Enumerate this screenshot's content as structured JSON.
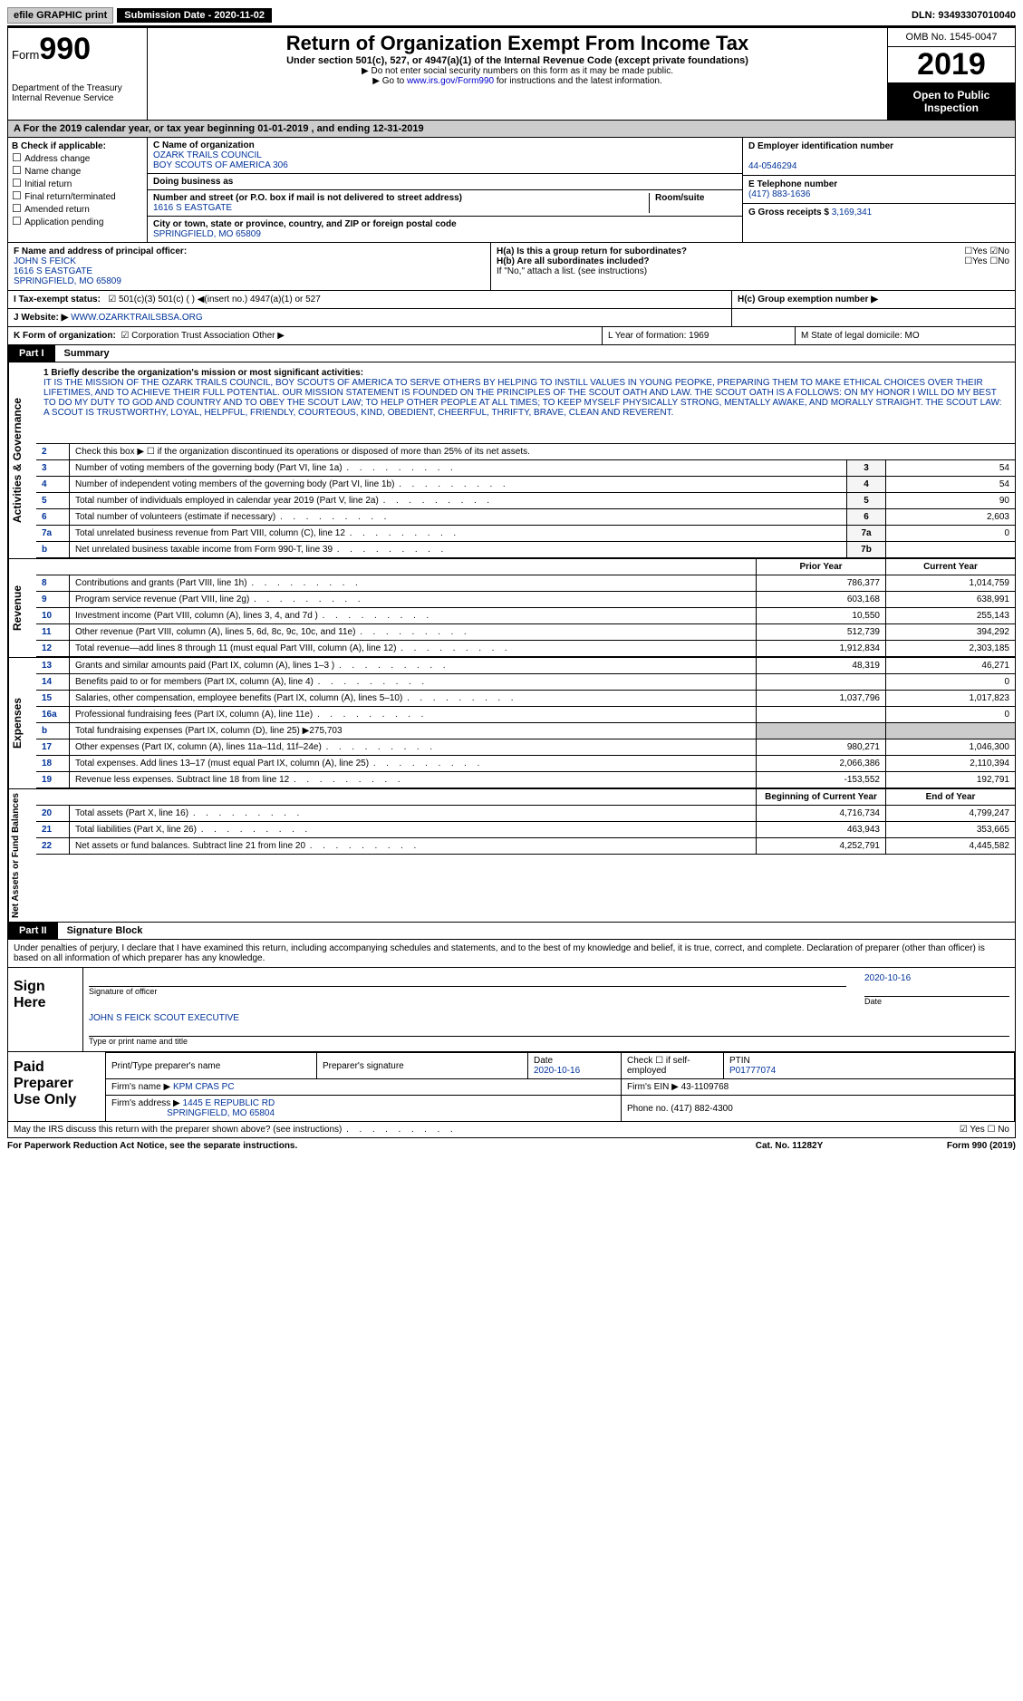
{
  "topbar": {
    "efile": "efile GRAPHIC print",
    "submission_label": "Submission Date - 2020-11-02",
    "dln_label": "DLN: 93493307010040"
  },
  "header": {
    "form_word": "Form",
    "form_num": "990",
    "dept": "Department of the Treasury\nInternal Revenue Service",
    "title": "Return of Organization Exempt From Income Tax",
    "sub1": "Under section 501(c), 527, or 4947(a)(1) of the Internal Revenue Code (except private foundations)",
    "sub2a": "Do not enter social security numbers on this form as it may be made public.",
    "sub2b_pre": "Go to ",
    "sub2b_link": "www.irs.gov/Form990",
    "sub2b_post": " for instructions and the latest information.",
    "omb": "OMB No. 1545-0047",
    "year": "2019",
    "inspect": "Open to Public Inspection"
  },
  "lineA": "A For the 2019 calendar year, or tax year beginning 01-01-2019   , and ending 12-31-2019",
  "boxB": {
    "title": "B Check if applicable:",
    "opts": [
      "Address change",
      "Name change",
      "Initial return",
      "Final return/terminated",
      "Amended return",
      "Application pending"
    ]
  },
  "boxC": {
    "name_lbl": "C Name of organization",
    "name1": "OZARK TRAILS COUNCIL",
    "name2": "BOY SCOUTS OF AMERICA 306",
    "dba_lbl": "Doing business as",
    "addr_lbl": "Number and street (or P.O. box if mail is not delivered to street address)",
    "room_lbl": "Room/suite",
    "addr": "1616 S EASTGATE",
    "city_lbl": "City or town, state or province, country, and ZIP or foreign postal code",
    "city": "SPRINGFIELD, MO  65809",
    "f_lbl": "F  Name and address of principal officer:",
    "f_name": "JOHN S FEICK",
    "f_addr1": "1616 S EASTGATE",
    "f_addr2": "SPRINGFIELD, MO  65809"
  },
  "boxD": {
    "lbl": "D Employer identification number",
    "val": "44-0546294"
  },
  "boxE": {
    "lbl": "E Telephone number",
    "val": "(417) 883-1636"
  },
  "boxG": {
    "lbl": "G Gross receipts $",
    "val": "3,169,341"
  },
  "boxH": {
    "a": "H(a)  Is this a group return for subordinates?",
    "b": "H(b)  Are all subordinates included?",
    "note": "If \"No,\" attach a list. (see instructions)",
    "c": "H(c)  Group exemption number ▶"
  },
  "rowI": {
    "lbl": "I   Tax-exempt status:",
    "opts": "501(c)(3)       501(c) (  ) ◀(insert no.)       4947(a)(1) or       527"
  },
  "rowJ": {
    "lbl": "J   Website: ▶",
    "val": "WWW.OZARKTRAILSBSA.ORG"
  },
  "rowK": {
    "form_lbl": "K Form of organization:",
    "form_opts": "Corporation    Trust    Association    Other ▶",
    "L": "L Year of formation: 1969",
    "M": "M State of legal domicile: MO"
  },
  "part1": {
    "tag": "Part I",
    "title": "Summary"
  },
  "vert": {
    "ag": "Activities & Governance",
    "rev": "Revenue",
    "exp": "Expenses",
    "net": "Net Assets or Fund Balances"
  },
  "mission": {
    "lbl": "1   Briefly describe the organization's mission or most significant activities:",
    "txt": "IT IS THE MISSION OF THE OZARK TRAILS COUNCIL, BOY SCOUTS OF AMERICA TO SERVE OTHERS BY HELPING TO INSTILL VALUES IN YOUNG PEOPKE, PREPARING THEM TO MAKE ETHICAL CHOICES OVER THEIR LIFETIMES, AND TO ACHIEVE THEIR FULL POTENTIAL. OUR MISSION STATEMENT IS FOUNDED ON THE PRINCIPLES OF THE SCOUT OATH AND LAW. THE SCOUT OATH IS A FOLLOWS: ON MY HONOR I WILL DO MY BEST TO DO MY DUTY TO GOD AND COUNTRY AND TO OBEY THE SCOUT LAW; TO HELP OTHER PEOPLE AT ALL TIMES; TO KEEP MYSELF PHYSICALLY STRONG, MENTALLY AWAKE, AND MORALLY STRAIGHT. THE SCOUT LAW: A SCOUT IS TRUSTWORTHY, LOYAL, HELPFUL, FRIENDLY, COURTEOUS, KIND, OBEDIENT, CHEERFUL, THRIFTY, BRAVE, CLEAN AND REVERENT."
  },
  "gov_rows": [
    {
      "n": "2",
      "desc": "Check this box ▶ ☐  if the organization discontinued its operations or disposed of more than 25% of its net assets."
    },
    {
      "n": "3",
      "desc": "Number of voting members of the governing body (Part VI, line 1a)",
      "box": "3",
      "val": "54"
    },
    {
      "n": "4",
      "desc": "Number of independent voting members of the governing body (Part VI, line 1b)",
      "box": "4",
      "val": "54"
    },
    {
      "n": "5",
      "desc": "Total number of individuals employed in calendar year 2019 (Part V, line 2a)",
      "box": "5",
      "val": "90"
    },
    {
      "n": "6",
      "desc": "Total number of volunteers (estimate if necessary)",
      "box": "6",
      "val": "2,603"
    },
    {
      "n": "7a",
      "desc": "Total unrelated business revenue from Part VIII, column (C), line 12",
      "box": "7a",
      "val": "0"
    },
    {
      "n": "b",
      "desc": "Net unrelated business taxable income from Form 990-T, line 39",
      "box": "7b",
      "val": ""
    }
  ],
  "rev_hdr": {
    "prior": "Prior Year",
    "curr": "Current Year"
  },
  "rev_rows": [
    {
      "n": "8",
      "desc": "Contributions and grants (Part VIII, line 1h)",
      "p": "786,377",
      "c": "1,014,759"
    },
    {
      "n": "9",
      "desc": "Program service revenue (Part VIII, line 2g)",
      "p": "603,168",
      "c": "638,991"
    },
    {
      "n": "10",
      "desc": "Investment income (Part VIII, column (A), lines 3, 4, and 7d )",
      "p": "10,550",
      "c": "255,143"
    },
    {
      "n": "11",
      "desc": "Other revenue (Part VIII, column (A), lines 5, 6d, 8c, 9c, 10c, and 11e)",
      "p": "512,739",
      "c": "394,292"
    },
    {
      "n": "12",
      "desc": "Total revenue—add lines 8 through 11 (must equal Part VIII, column (A), line 12)",
      "p": "1,912,834",
      "c": "2,303,185"
    }
  ],
  "exp_rows": [
    {
      "n": "13",
      "desc": "Grants and similar amounts paid (Part IX, column (A), lines 1–3 )",
      "p": "48,319",
      "c": "46,271"
    },
    {
      "n": "14",
      "desc": "Benefits paid to or for members (Part IX, column (A), line 4)",
      "p": "",
      "c": "0"
    },
    {
      "n": "15",
      "desc": "Salaries, other compensation, employee benefits (Part IX, column (A), lines 5–10)",
      "p": "1,037,796",
      "c": "1,017,823"
    },
    {
      "n": "16a",
      "desc": "Professional fundraising fees (Part IX, column (A), line 11e)",
      "p": "",
      "c": "0"
    },
    {
      "n": "b",
      "desc": "Total fundraising expenses (Part IX, column (D), line 25) ▶275,703",
      "shade": true
    },
    {
      "n": "17",
      "desc": "Other expenses (Part IX, column (A), lines 11a–11d, 11f–24e)",
      "p": "980,271",
      "c": "1,046,300"
    },
    {
      "n": "18",
      "desc": "Total expenses. Add lines 13–17 (must equal Part IX, column (A), line 25)",
      "p": "2,066,386",
      "c": "2,110,394"
    },
    {
      "n": "19",
      "desc": "Revenue less expenses. Subtract line 18 from line 12",
      "p": "-153,552",
      "c": "192,791"
    }
  ],
  "net_hdr": {
    "prior": "Beginning of Current Year",
    "curr": "End of Year"
  },
  "net_rows": [
    {
      "n": "20",
      "desc": "Total assets (Part X, line 16)",
      "p": "4,716,734",
      "c": "4,799,247"
    },
    {
      "n": "21",
      "desc": "Total liabilities (Part X, line 26)",
      "p": "463,943",
      "c": "353,665"
    },
    {
      "n": "22",
      "desc": "Net assets or fund balances. Subtract line 21 from line 20",
      "p": "4,252,791",
      "c": "4,445,582"
    }
  ],
  "part2": {
    "tag": "Part II",
    "title": "Signature Block"
  },
  "sig": {
    "decl": "Under penalties of perjury, I declare that I have examined this return, including accompanying schedules and statements, and to the best of my knowledge and belief, it is true, correct, and complete. Declaration of preparer (other than officer) is based on all information of which preparer has any knowledge.",
    "sign_here": "Sign Here",
    "sig_officer": "Signature of officer",
    "date": "2020-10-16",
    "name": "JOHN S FEICK  SCOUT EXECUTIVE",
    "name_lbl": "Type or print name and title"
  },
  "prep": {
    "label": "Paid Preparer Use Only",
    "h1": "Print/Type preparer's name",
    "h2": "Preparer's signature",
    "h3_lbl": "Date",
    "h3": "2020-10-16",
    "h4": "Check ☐ if self-employed",
    "h5_lbl": "PTIN",
    "h5": "P01777074",
    "firm_name_lbl": "Firm's name    ▶",
    "firm_name": "KPM CPAS PC",
    "firm_ein": "Firm's EIN ▶ 43-1109768",
    "firm_addr_lbl": "Firm's address ▶",
    "firm_addr1": "1445 E REPUBLIC RD",
    "firm_addr2": "SPRINGFIELD, MO  65804",
    "phone": "Phone no. (417) 882-4300"
  },
  "discuss": "May the IRS discuss this return with the preparer shown above? (see instructions)",
  "footer": {
    "left": "For Paperwork Reduction Act Notice, see the separate instructions.",
    "mid": "Cat. No. 11282Y",
    "right": "Form 990 (2019)"
  }
}
